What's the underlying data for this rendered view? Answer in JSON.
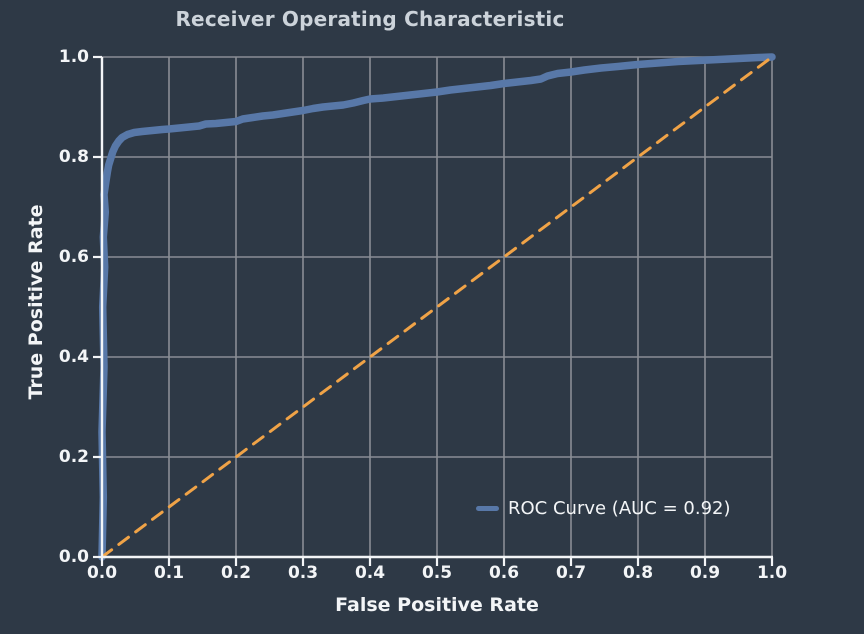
{
  "title": "Receiver Operating Characteristic",
  "colors": {
    "background": "#2e3946",
    "grid": "#8a8e95",
    "axis": "#f3f5f7",
    "text": "#f3f5f7",
    "title_text": "#ccd3da",
    "roc_blue": "#5878a8",
    "chance_orange": "#f0a347"
  },
  "legend": {
    "entries": [
      {
        "label": "ROC Curve (AUC = 0.92)",
        "swatch_color": "#5878a8"
      }
    ],
    "position": "lower right"
  },
  "chart_data": {
    "type": "line",
    "title": "Receiver Operating Characteristic",
    "xlabel": "False Positive Rate",
    "ylabel": "True Positive Rate",
    "xlim": [
      0,
      1
    ],
    "ylim": [
      0,
      1
    ],
    "grid": true,
    "x_tick_labels": [
      "0.0",
      "0.1",
      "0.2",
      "0.3",
      "0.4",
      "0.5",
      "0.6",
      "0.7",
      "0.8",
      "0.9",
      "1.0"
    ],
    "y_tick_labels": [
      "0.0",
      "0.2",
      "0.4",
      "0.6",
      "0.8",
      "1.0"
    ],
    "auc": 0.92,
    "legend_position": "lower right",
    "series": [
      {
        "name": "ROC Curve (AUC = 0.92)",
        "color": "#5878a8",
        "style": "solid",
        "line_width": 7.5,
        "points": [
          [
            0.0,
            0.0
          ],
          [
            0.002,
            0.12
          ],
          [
            0.0,
            0.25
          ],
          [
            0.003,
            0.38
          ],
          [
            0.001,
            0.5
          ],
          [
            0.004,
            0.58
          ],
          [
            0.002,
            0.64
          ],
          [
            0.005,
            0.69
          ],
          [
            0.003,
            0.725
          ],
          [
            0.006,
            0.752
          ],
          [
            0.008,
            0.77
          ],
          [
            0.01,
            0.784
          ],
          [
            0.013,
            0.797
          ],
          [
            0.016,
            0.81
          ],
          [
            0.02,
            0.822
          ],
          [
            0.025,
            0.832
          ],
          [
            0.03,
            0.839
          ],
          [
            0.038,
            0.845
          ],
          [
            0.048,
            0.849
          ],
          [
            0.06,
            0.851
          ],
          [
            0.075,
            0.853
          ],
          [
            0.09,
            0.855
          ],
          [
            0.1,
            0.856
          ],
          [
            0.115,
            0.858
          ],
          [
            0.13,
            0.86
          ],
          [
            0.145,
            0.862
          ],
          [
            0.155,
            0.866
          ],
          [
            0.17,
            0.867
          ],
          [
            0.185,
            0.869
          ],
          [
            0.2,
            0.871
          ],
          [
            0.21,
            0.876
          ],
          [
            0.225,
            0.879
          ],
          [
            0.24,
            0.882
          ],
          [
            0.255,
            0.884
          ],
          [
            0.27,
            0.887
          ],
          [
            0.285,
            0.89
          ],
          [
            0.3,
            0.893
          ],
          [
            0.315,
            0.897
          ],
          [
            0.33,
            0.9
          ],
          [
            0.345,
            0.902
          ],
          [
            0.36,
            0.904
          ],
          [
            0.375,
            0.908
          ],
          [
            0.39,
            0.913
          ],
          [
            0.4,
            0.916
          ],
          [
            0.42,
            0.918
          ],
          [
            0.44,
            0.921
          ],
          [
            0.46,
            0.924
          ],
          [
            0.48,
            0.927
          ],
          [
            0.5,
            0.93
          ],
          [
            0.52,
            0.934
          ],
          [
            0.54,
            0.937
          ],
          [
            0.56,
            0.94
          ],
          [
            0.58,
            0.943
          ],
          [
            0.6,
            0.947
          ],
          [
            0.62,
            0.95
          ],
          [
            0.64,
            0.953
          ],
          [
            0.655,
            0.956
          ],
          [
            0.665,
            0.962
          ],
          [
            0.68,
            0.967
          ],
          [
            0.7,
            0.97
          ],
          [
            0.72,
            0.974
          ],
          [
            0.745,
            0.978
          ],
          [
            0.77,
            0.981
          ],
          [
            0.8,
            0.985
          ],
          [
            0.83,
            0.988
          ],
          [
            0.86,
            0.991
          ],
          [
            0.89,
            0.993
          ],
          [
            0.92,
            0.995
          ],
          [
            0.95,
            0.997
          ],
          [
            0.98,
            0.999
          ],
          [
            1.0,
            1.0
          ]
        ]
      },
      {
        "name": "chance-diagonal",
        "color": "#f0a347",
        "style": "dashed",
        "line_width": 3,
        "points": [
          [
            0,
            0
          ],
          [
            1,
            1
          ]
        ]
      }
    ]
  }
}
